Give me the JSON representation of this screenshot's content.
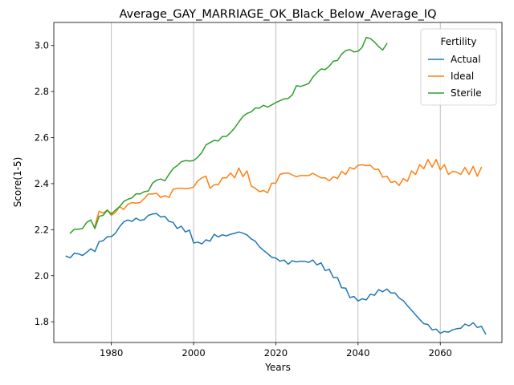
{
  "chart_data": {
    "type": "line",
    "title": "Average_GAY_MARRIAGE_OK_Black_Below_Average_IQ",
    "xlabel": "Years",
    "ylabel": "Score(1-5)",
    "xlim": [
      1966,
      2075
    ],
    "ylim": [
      1.71,
      3.1
    ],
    "xticks": [
      1980,
      2000,
      2020,
      2040,
      2060
    ],
    "yticks": [
      1.8,
      2.0,
      2.2,
      2.4,
      2.6,
      2.8,
      3.0
    ],
    "grid": "vertical",
    "legend": {
      "title": "Fertility",
      "placement": "top-right"
    },
    "series": [
      {
        "name": "Actual",
        "color": "#1f77b4",
        "x_start": 1969,
        "values": [
          2.085,
          2.078,
          2.098,
          2.095,
          2.088,
          2.102,
          2.117,
          2.105,
          2.148,
          2.152,
          2.17,
          2.17,
          2.185,
          2.213,
          2.234,
          2.242,
          2.236,
          2.25,
          2.24,
          2.244,
          2.262,
          2.268,
          2.27,
          2.255,
          2.258,
          2.236,
          2.232,
          2.205,
          2.215,
          2.19,
          2.198,
          2.142,
          2.146,
          2.138,
          2.156,
          2.15,
          2.18,
          2.168,
          2.178,
          2.173,
          2.18,
          2.184,
          2.19,
          2.185,
          2.177,
          2.16,
          2.15,
          2.126,
          2.11,
          2.096,
          2.08,
          2.077,
          2.063,
          2.068,
          2.05,
          2.065,
          2.06,
          2.063,
          2.063,
          2.058,
          2.068,
          2.047,
          2.056,
          2.022,
          2.028,
          1.992,
          1.992,
          1.948,
          1.946,
          1.905,
          1.91,
          1.89,
          1.9,
          1.895,
          1.92,
          1.915,
          1.94,
          1.93,
          1.942,
          1.925,
          1.925,
          1.903,
          1.892,
          1.87,
          1.85,
          1.83,
          1.81,
          1.792,
          1.788,
          1.765,
          1.768,
          1.75,
          1.758,
          1.755,
          1.765,
          1.77,
          1.772,
          1.79,
          1.782,
          1.796,
          1.775,
          1.78,
          1.748
        ]
      },
      {
        "name": "Ideal",
        "color": "#ff7f0e",
        "x_start": 1976,
        "values": [
          2.215,
          2.28,
          2.272,
          2.285,
          2.262,
          2.275,
          2.3,
          2.288,
          2.31,
          2.318,
          2.315,
          2.318,
          2.335,
          2.355,
          2.355,
          2.358,
          2.34,
          2.348,
          2.34,
          2.375,
          2.38,
          2.38,
          2.378,
          2.38,
          2.385,
          2.412,
          2.425,
          2.432,
          2.38,
          2.395,
          2.395,
          2.425,
          2.425,
          2.446,
          2.425,
          2.468,
          2.43,
          2.455,
          2.39,
          2.38,
          2.365,
          2.37,
          2.36,
          2.402,
          2.402,
          2.44,
          2.445,
          2.446,
          2.438,
          2.43,
          2.435,
          2.435,
          2.435,
          2.445,
          2.435,
          2.425,
          2.425,
          2.412,
          2.43,
          2.422,
          2.453,
          2.44,
          2.47,
          2.463,
          2.48,
          2.482,
          2.478,
          2.48,
          2.462,
          2.462,
          2.428,
          2.432,
          2.405,
          2.41,
          2.392,
          2.422,
          2.41,
          2.455,
          2.44,
          2.482,
          2.465,
          2.505,
          2.472,
          2.505,
          2.46,
          2.482,
          2.44,
          2.453,
          2.45,
          2.44,
          2.47,
          2.44,
          2.475,
          2.432,
          2.47
        ]
      },
      {
        "name": "Sterile",
        "color": "#2ca02c",
        "x_start": 1970,
        "values": [
          2.185,
          2.202,
          2.202,
          2.205,
          2.232,
          2.242,
          2.205,
          2.258,
          2.262,
          2.285,
          2.268,
          2.285,
          2.3,
          2.322,
          2.332,
          2.338,
          2.356,
          2.355,
          2.365,
          2.368,
          2.402,
          2.415,
          2.42,
          2.412,
          2.44,
          2.465,
          2.478,
          2.495,
          2.5,
          2.498,
          2.5,
          2.515,
          2.535,
          2.568,
          2.578,
          2.588,
          2.585,
          2.605,
          2.605,
          2.622,
          2.642,
          2.668,
          2.692,
          2.705,
          2.712,
          2.728,
          2.728,
          2.74,
          2.732,
          2.742,
          2.752,
          2.76,
          2.768,
          2.77,
          2.785,
          2.825,
          2.822,
          2.828,
          2.835,
          2.862,
          2.882,
          2.898,
          2.895,
          2.91,
          2.932,
          2.935,
          2.962,
          2.978,
          2.982,
          2.972,
          2.975,
          2.992,
          3.035,
          3.03,
          3.015,
          2.995,
          2.98,
          3.008
        ]
      }
    ]
  }
}
